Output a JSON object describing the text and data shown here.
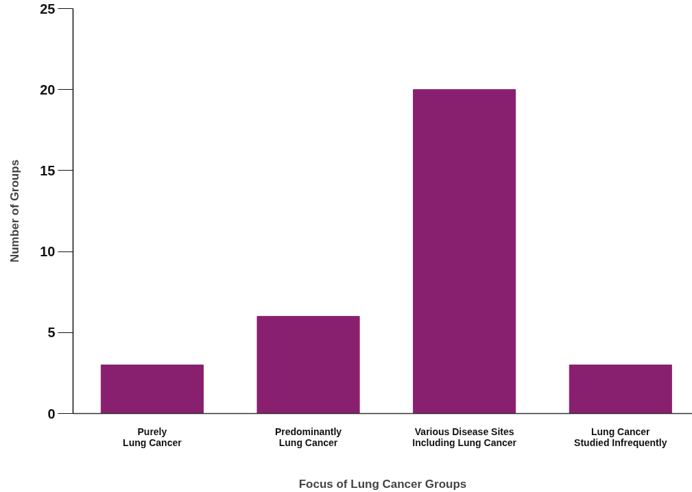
{
  "chart_data": {
    "type": "bar",
    "xlabel": "Focus of Lung Cancer Groups",
    "ylabel": "Number of Groups",
    "categories": [
      "Purely\nLung Cancer",
      "Predominantly\nLung Cancer",
      "Various Disease Sites\nIncluding Lung Cancer",
      "Lung Cancer\nStudied Infrequently"
    ],
    "values": [
      3,
      6,
      20,
      3
    ],
    "color": "#88206f",
    "ylim": [
      0,
      25
    ],
    "yticks": [
      0,
      5,
      10,
      15,
      20,
      25
    ],
    "grid": false
  }
}
